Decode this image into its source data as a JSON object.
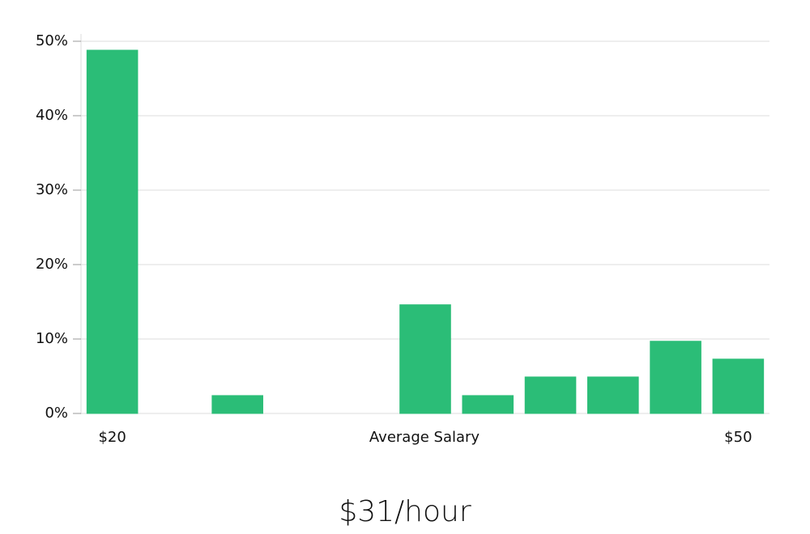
{
  "chart_data": {
    "type": "bar",
    "title": "$31/hour",
    "xlabel": "Average Salary",
    "categories": [
      "$20",
      null,
      null,
      null,
      null,
      null,
      null,
      null,
      null,
      null,
      "$50"
    ],
    "values": [
      48.8,
      0,
      2.4,
      0,
      0,
      14.6,
      2.4,
      4.9,
      4.9,
      9.7,
      7.3
    ],
    "colors": [
      "#2bbd77",
      "#2bbd77",
      "#2bbd77",
      "#1c1f4a",
      "#2bbd77",
      "#2bbd77",
      "#2bbd77",
      "#2bbd77",
      "#2bbd77",
      "#2bbd77",
      "#2bbd77"
    ],
    "ylim": [
      0,
      50
    ],
    "yticks": [
      {
        "value": 0,
        "label": "0%"
      },
      {
        "value": 10,
        "label": "10%"
      },
      {
        "value": 20,
        "label": "20%"
      },
      {
        "value": 30,
        "label": "30%"
      },
      {
        "value": 40,
        "label": "40%"
      },
      {
        "value": 50,
        "label": "50%"
      }
    ],
    "grid": true
  }
}
